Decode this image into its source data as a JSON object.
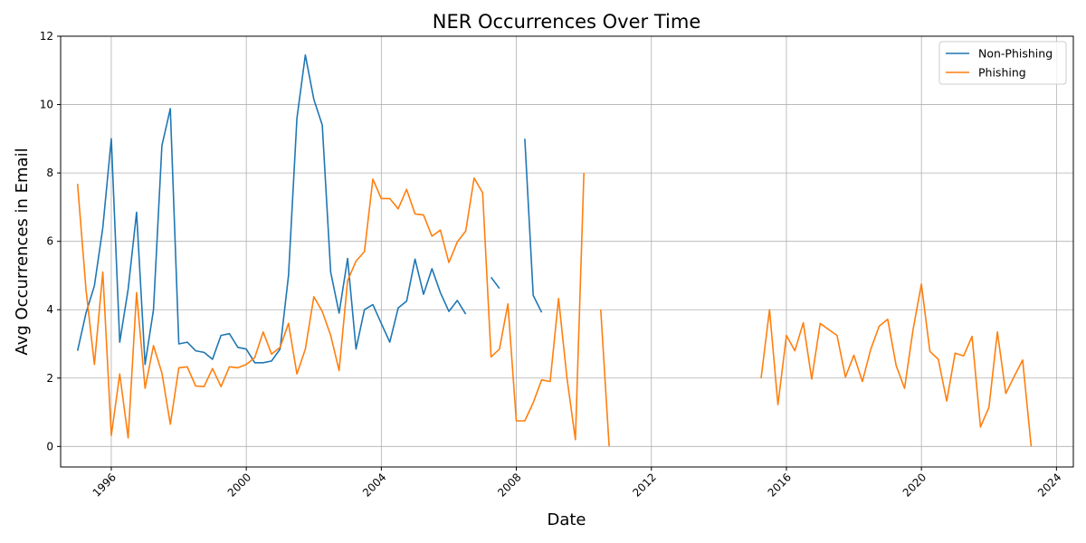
{
  "chart_data": {
    "type": "line",
    "title": "NER Occurrences Over Time",
    "xlabel": "Date",
    "ylabel": "Avg Occurrences in Email",
    "xlim": [
      "1994-07-01",
      "2024-07-01"
    ],
    "ylim": [
      -0.6,
      12
    ],
    "x_ticks": [
      "1996",
      "2000",
      "2004",
      "2008",
      "2012",
      "2016",
      "2020",
      "2024"
    ],
    "y_ticks": [
      "0",
      "2",
      "4",
      "6",
      "8",
      "10",
      "12"
    ],
    "grid": true,
    "legend_position": "top-right",
    "series": [
      {
        "name": "Non-Phishing",
        "color": "#1f77b4",
        "points": [
          [
            "1995-01",
            2.8
          ],
          [
            "1995-04",
            3.9
          ],
          [
            "1995-07",
            4.7
          ],
          [
            "1995-10",
            6.4
          ],
          [
            "1996-01",
            9.0
          ],
          [
            "1996-04",
            3.05
          ],
          [
            "1996-07",
            4.6
          ],
          [
            "1996-10",
            6.85
          ],
          [
            "1997-01",
            2.4
          ],
          [
            "1997-04",
            4.0
          ],
          [
            "1997-07",
            8.8
          ],
          [
            "1997-10",
            9.88
          ],
          [
            "1998-01",
            3.0
          ],
          [
            "1998-04",
            3.05
          ],
          [
            "1998-07",
            2.8
          ],
          [
            "1998-10",
            2.75
          ],
          [
            "1999-01",
            2.55
          ],
          [
            "1999-04",
            3.25
          ],
          [
            "1999-07",
            3.3
          ],
          [
            "1999-10",
            2.9
          ],
          [
            "2000-01",
            2.85
          ],
          [
            "2000-04",
            2.45
          ],
          [
            "2000-07",
            2.45
          ],
          [
            "2000-10",
            2.5
          ],
          [
            "2001-01",
            2.85
          ],
          [
            "2001-04",
            5.0
          ],
          [
            "2001-07",
            9.6
          ],
          [
            "2001-10",
            11.45
          ],
          [
            "2002-01",
            10.15
          ],
          [
            "2002-04",
            9.4
          ],
          [
            "2002-07",
            5.1
          ],
          [
            "2002-10",
            3.9
          ],
          [
            "2003-01",
            5.5
          ],
          [
            "2003-04",
            2.85
          ],
          [
            "2003-07",
            4.0
          ],
          [
            "2003-10",
            4.15
          ],
          [
            "2004-01",
            3.6
          ],
          [
            "2004-04",
            3.05
          ],
          [
            "2004-07",
            4.05
          ],
          [
            "2004-10",
            4.25
          ],
          [
            "2005-01",
            5.48
          ],
          [
            "2005-04",
            4.45
          ],
          [
            "2005-07",
            5.2
          ],
          [
            "2005-10",
            4.5
          ],
          [
            "2006-01",
            3.95
          ],
          [
            "2006-04",
            4.27
          ],
          [
            "2006-07",
            3.87
          ],
          [
            "2006-10",
            null
          ],
          [
            "2007-01",
            null
          ],
          [
            "2007-04",
            4.95
          ],
          [
            "2007-07",
            4.62
          ],
          [
            "2007-10",
            null
          ],
          [
            "2008-01",
            null
          ],
          [
            "2008-04",
            9.0
          ],
          [
            "2008-07",
            4.42
          ],
          [
            "2008-10",
            3.92
          ]
        ]
      },
      {
        "name": "Phishing",
        "color": "#ff7f0e",
        "points": [
          [
            "1995-01",
            7.68
          ],
          [
            "1995-04",
            4.6
          ],
          [
            "1995-07",
            2.4
          ],
          [
            "1995-10",
            5.1
          ],
          [
            "1996-01",
            0.32
          ],
          [
            "1996-04",
            2.12
          ],
          [
            "1996-07",
            0.25
          ],
          [
            "1996-10",
            4.5
          ],
          [
            "1997-01",
            1.7
          ],
          [
            "1997-04",
            2.95
          ],
          [
            "1997-07",
            2.15
          ],
          [
            "1997-10",
            0.65
          ],
          [
            "1998-01",
            2.3
          ],
          [
            "1998-04",
            2.33
          ],
          [
            "1998-07",
            1.77
          ],
          [
            "1998-10",
            1.75
          ],
          [
            "1999-01",
            2.28
          ],
          [
            "1999-04",
            1.75
          ],
          [
            "1999-07",
            2.33
          ],
          [
            "1999-10",
            2.3
          ],
          [
            "2000-01",
            2.4
          ],
          [
            "2000-04",
            2.6
          ],
          [
            "2000-07",
            3.35
          ],
          [
            "2000-10",
            2.7
          ],
          [
            "2001-01",
            2.9
          ],
          [
            "2001-04",
            3.6
          ],
          [
            "2001-07",
            2.12
          ],
          [
            "2001-10",
            2.85
          ],
          [
            "2002-01",
            4.38
          ],
          [
            "2002-04",
            3.95
          ],
          [
            "2002-07",
            3.25
          ],
          [
            "2002-10",
            2.22
          ],
          [
            "2003-01",
            4.85
          ],
          [
            "2003-04",
            5.42
          ],
          [
            "2003-07",
            5.7
          ],
          [
            "2003-10",
            7.82
          ],
          [
            "2004-01",
            7.25
          ],
          [
            "2004-04",
            7.25
          ],
          [
            "2004-07",
            6.95
          ],
          [
            "2004-10",
            7.52
          ],
          [
            "2005-01",
            6.8
          ],
          [
            "2005-04",
            6.77
          ],
          [
            "2005-07",
            6.15
          ],
          [
            "2005-10",
            6.33
          ],
          [
            "2006-01",
            5.38
          ],
          [
            "2006-04",
            5.98
          ],
          [
            "2006-07",
            6.3
          ],
          [
            "2006-10",
            7.85
          ],
          [
            "2007-01",
            7.42
          ],
          [
            "2007-04",
            2.62
          ],
          [
            "2007-07",
            2.85
          ],
          [
            "2007-10",
            4.17
          ],
          [
            "2008-01",
            0.75
          ],
          [
            "2008-04",
            0.75
          ],
          [
            "2008-07",
            1.28
          ],
          [
            "2008-10",
            1.95
          ],
          [
            "2009-01",
            1.9
          ],
          [
            "2009-04",
            4.33
          ],
          [
            "2009-07",
            2.0
          ],
          [
            "2009-10",
            0.2
          ],
          [
            "2010-01",
            8.0
          ],
          [
            "2010-04",
            null
          ],
          [
            "2010-07",
            4.0
          ],
          [
            "2010-10",
            0.0
          ],
          [
            "2011-01",
            null
          ],
          [
            "2015-04",
            2.0
          ],
          [
            "2015-07",
            4.0
          ],
          [
            "2015-10",
            1.22
          ],
          [
            "2016-01",
            3.25
          ],
          [
            "2016-04",
            2.8
          ],
          [
            "2016-07",
            3.62
          ],
          [
            "2016-10",
            1.97
          ],
          [
            "2017-01",
            3.6
          ],
          [
            "2017-04",
            3.42
          ],
          [
            "2017-07",
            3.25
          ],
          [
            "2017-10",
            2.03
          ],
          [
            "2018-01",
            2.67
          ],
          [
            "2018-04",
            1.9
          ],
          [
            "2018-07",
            2.85
          ],
          [
            "2018-10",
            3.52
          ],
          [
            "2019-01",
            3.72
          ],
          [
            "2019-04",
            2.37
          ],
          [
            "2019-07",
            1.7
          ],
          [
            "2019-10",
            3.4
          ],
          [
            "2020-01",
            4.75
          ],
          [
            "2020-04",
            2.78
          ],
          [
            "2020-07",
            2.55
          ],
          [
            "2020-10",
            1.33
          ],
          [
            "2021-01",
            2.73
          ],
          [
            "2021-04",
            2.65
          ],
          [
            "2021-07",
            3.22
          ],
          [
            "2021-10",
            0.57
          ],
          [
            "2022-01",
            1.15
          ],
          [
            "2022-04",
            3.35
          ],
          [
            "2022-07",
            1.55
          ],
          [
            "2022-10",
            2.05
          ],
          [
            "2023-01",
            2.53
          ],
          [
            "2023-04",
            0.0
          ]
        ]
      }
    ]
  }
}
